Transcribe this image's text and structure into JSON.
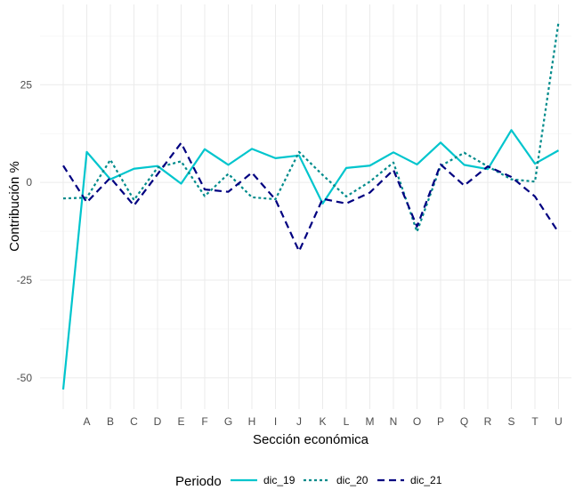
{
  "chart_data": {
    "type": "line",
    "categories": [
      "",
      "A",
      "B",
      "C",
      "D",
      "E",
      "F",
      "G",
      "H",
      "I",
      "J",
      "K",
      "L",
      "M",
      "N",
      "O",
      "P",
      "Q",
      "R",
      "S",
      "T",
      "U"
    ],
    "xlabel": "Sección económica",
    "ylabel": "Contribución %",
    "ylim": [
      -53,
      41
    ],
    "yticks": [
      -50,
      -25,
      0,
      25
    ],
    "grid": true,
    "legend": {
      "title": "Periodo",
      "placement": "bottom"
    },
    "series": [
      {
        "name": "dic_19",
        "color": "#00c5cd",
        "dash": "solid",
        "values": [
          -53.0,
          7.8,
          0.8,
          3.5,
          4.2,
          -0.3,
          8.5,
          4.5,
          8.6,
          6.2,
          6.9,
          -5.4,
          3.7,
          4.3,
          7.7,
          4.6,
          10.2,
          4.5,
          3.4,
          13.4,
          4.8,
          8.2
        ]
      },
      {
        "name": "dic_20",
        "color": "#008b8b",
        "dash": "dotted",
        "values": [
          -4.1,
          -3.9,
          5.8,
          -4.5,
          3.8,
          5.4,
          -3.5,
          2.2,
          -3.8,
          -4.3,
          7.8,
          1.9,
          -3.6,
          0.2,
          5.1,
          -12.6,
          4.2,
          7.6,
          4.1,
          0.8,
          0.2,
          41.0
        ]
      },
      {
        "name": "dic_21",
        "color": "#000080",
        "dash": "dashed",
        "values": [
          4.3,
          -5.1,
          1.2,
          -5.9,
          2.1,
          10.1,
          -1.8,
          -2.4,
          2.5,
          -4.4,
          -17.6,
          -4.2,
          -5.4,
          -2.6,
          3.2,
          -11.3,
          4.6,
          -0.8,
          4.1,
          1.4,
          -3.6,
          -12.8
        ]
      }
    ]
  }
}
